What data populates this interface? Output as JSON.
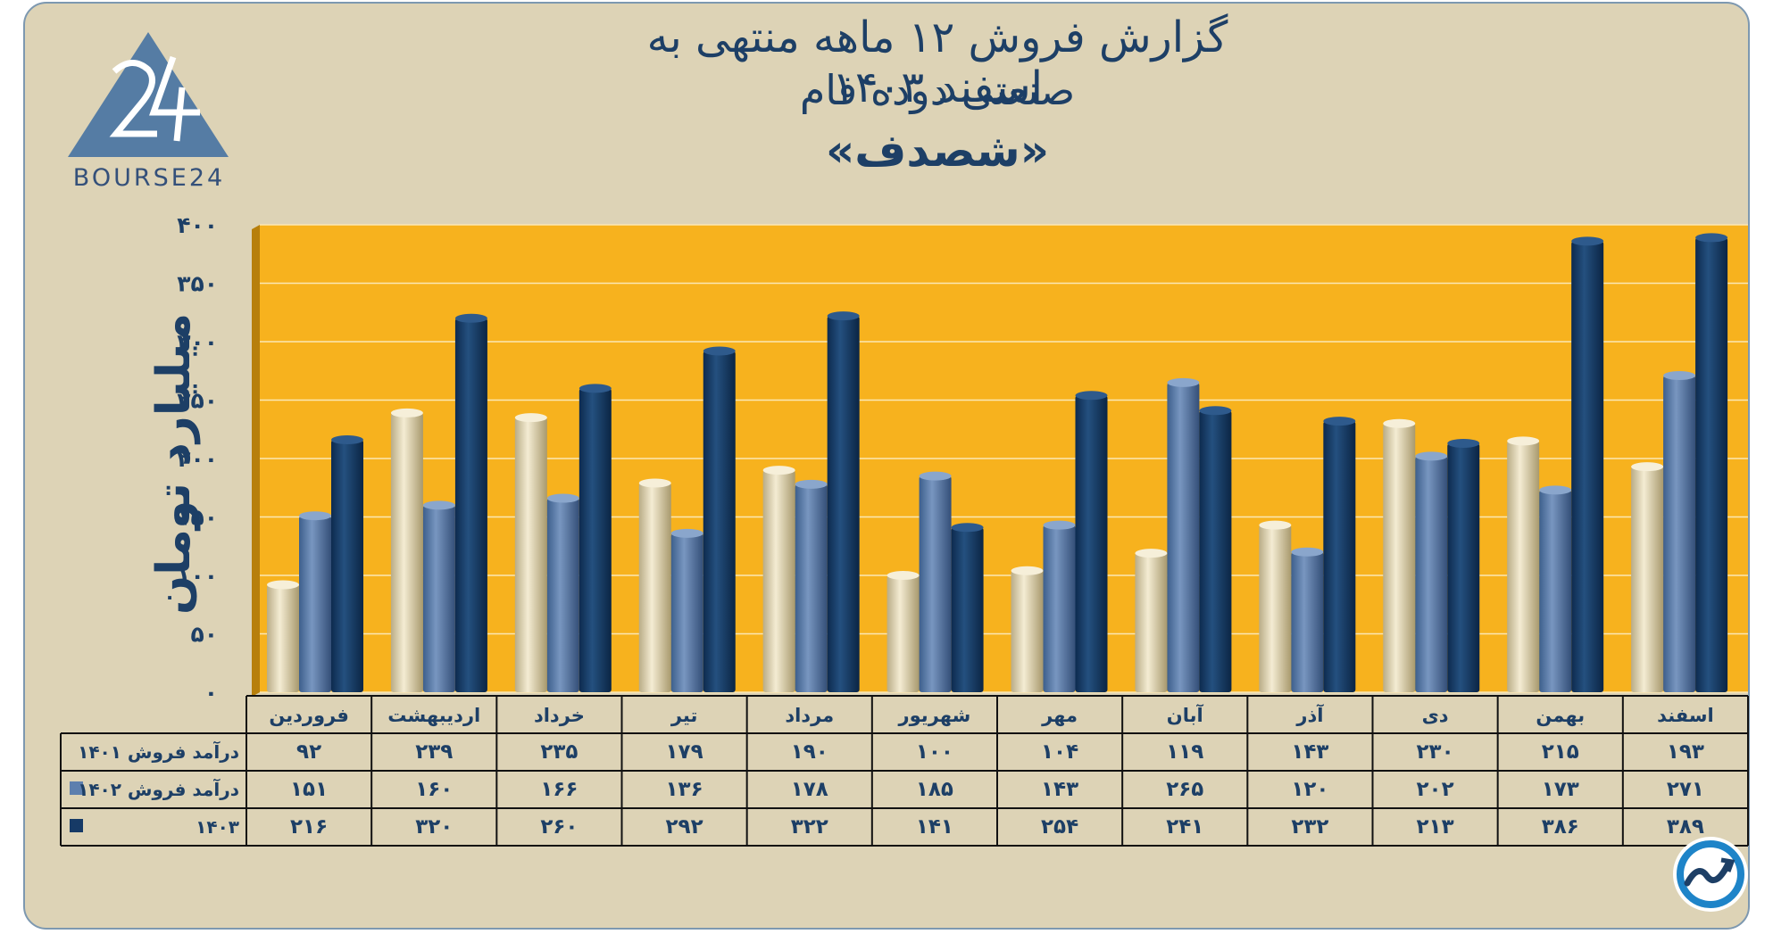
{
  "header": {
    "title_line1": "گزارش  فروش ۱۲ ماهه منتهی به اسفند ۱۴۰۳",
    "title_line2": "صنعتی دوده فام",
    "title_line3": "«شصدف»"
  },
  "logo": {
    "text": "BOURSE24",
    "mark": "24",
    "icon": "bourse24-triangle-logo"
  },
  "badge": {
    "icon": "trend-chart-badge-icon"
  },
  "colors": {
    "plot_bg": "#f7b21e",
    "frame_bg": "#ddd3b6",
    "series_1401": "#e8dcba",
    "series_1402": "#5d7fae",
    "series_1403": "#163a66",
    "text": "#1d3f66"
  },
  "chart_data": {
    "type": "bar",
    "title": "گزارش  فروش ۱۲ ماهه منتهی به اسفند ۱۴۰۳",
    "ylabel": "میلیارد تومان",
    "ylim": [
      0,
      400
    ],
    "yticks": [
      "۰",
      "۵۰",
      "۱۰۰",
      "۱۵۰",
      "۲۰۰",
      "۲۵۰",
      "۳۰۰",
      "۳۵۰",
      "۴۰۰"
    ],
    "grid": true,
    "categories": [
      "فروردین",
      "اردیبهشت",
      "خرداد",
      "تیر",
      "مرداد",
      "شهریور",
      "مهر",
      "آبان",
      "آذر",
      "دی",
      "بهمن",
      "اسفند"
    ],
    "series": [
      {
        "name": "درآمد فروش ۱۴۰۱",
        "values": [
          92,
          239,
          235,
          179,
          190,
          100,
          104,
          119,
          143,
          230,
          215,
          193
        ],
        "labels": [
          "۹۲",
          "۲۳۹",
          "۲۳۵",
          "۱۷۹",
          "۱۹۰",
          "۱۰۰",
          "۱۰۴",
          "۱۱۹",
          "۱۴۳",
          "۲۳۰",
          "۲۱۵",
          "۱۹۳"
        ]
      },
      {
        "name": "درآمد فروش ۱۴۰۲",
        "values": [
          151,
          160,
          166,
          136,
          178,
          185,
          143,
          265,
          120,
          202,
          173,
          271
        ],
        "labels": [
          "۱۵۱",
          "۱۶۰",
          "۱۶۶",
          "۱۳۶",
          "۱۷۸",
          "۱۸۵",
          "۱۴۳",
          "۲۶۵",
          "۱۲۰",
          "۲۰۲",
          "۱۷۳",
          "۲۷۱"
        ]
      },
      {
        "name": "۱۴۰۳",
        "values": [
          216,
          320,
          260,
          292,
          322,
          141,
          254,
          241,
          232,
          213,
          386,
          389
        ],
        "labels": [
          "۲۱۶",
          "۳۲۰",
          "۲۶۰",
          "۲۹۲",
          "۳۲۲",
          "۱۴۱",
          "۲۵۴",
          "۲۴۱",
          "۲۳۲",
          "۲۱۳",
          "۳۸۶",
          "۳۸۹"
        ]
      }
    ]
  }
}
